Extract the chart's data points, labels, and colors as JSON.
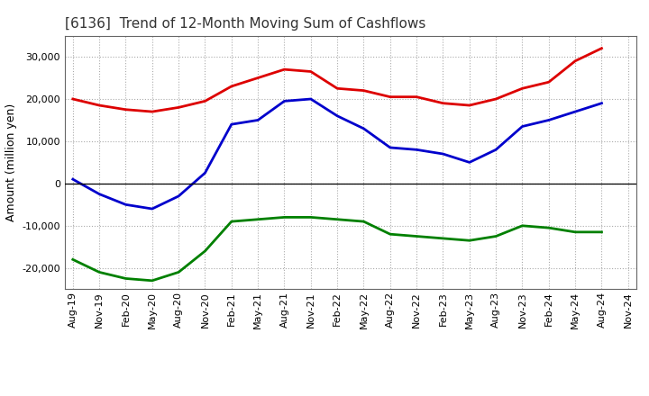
{
  "title": "[6136]  Trend of 12-Month Moving Sum of Cashflows",
  "ylabel": "Amount (million yen)",
  "x_labels": [
    "Aug-19",
    "Nov-19",
    "Feb-20",
    "May-20",
    "Aug-20",
    "Nov-20",
    "Feb-21",
    "May-21",
    "Aug-21",
    "Nov-21",
    "Feb-22",
    "May-22",
    "Aug-22",
    "Nov-22",
    "Feb-23",
    "May-23",
    "Aug-23",
    "Nov-23",
    "Feb-24",
    "May-24",
    "Aug-24",
    "Nov-24"
  ],
  "operating": [
    20000,
    18500,
    17500,
    17000,
    18000,
    19500,
    23000,
    25000,
    27000,
    26500,
    22500,
    22000,
    20500,
    20500,
    19000,
    18500,
    20000,
    22500,
    24000,
    29000,
    32000,
    null
  ],
  "investing": [
    -18000,
    -21000,
    -22500,
    -23000,
    -21000,
    -16000,
    -9000,
    -8500,
    -8000,
    -8000,
    -8500,
    -9000,
    -12000,
    -12500,
    -13000,
    -13500,
    -12500,
    -10000,
    -10500,
    -11500,
    -11500,
    null
  ],
  "free": [
    1000,
    -2500,
    -5000,
    -6000,
    -3000,
    2500,
    14000,
    15000,
    19500,
    20000,
    16000,
    13000,
    8500,
    8000,
    7000,
    5000,
    8000,
    13500,
    15000,
    17000,
    19000,
    null
  ],
  "operating_color": "#dd0000",
  "investing_color": "#008000",
  "free_color": "#0000cc",
  "ylim": [
    -25000,
    35000
  ],
  "yticks": [
    -20000,
    -10000,
    0,
    10000,
    20000,
    30000
  ],
  "grid_color": "#aaaaaa",
  "bg_color": "#ffffff",
  "title_fontsize": 11,
  "axis_fontsize": 8,
  "ylabel_fontsize": 9,
  "legend_fontsize": 9,
  "linewidth": 2.0
}
